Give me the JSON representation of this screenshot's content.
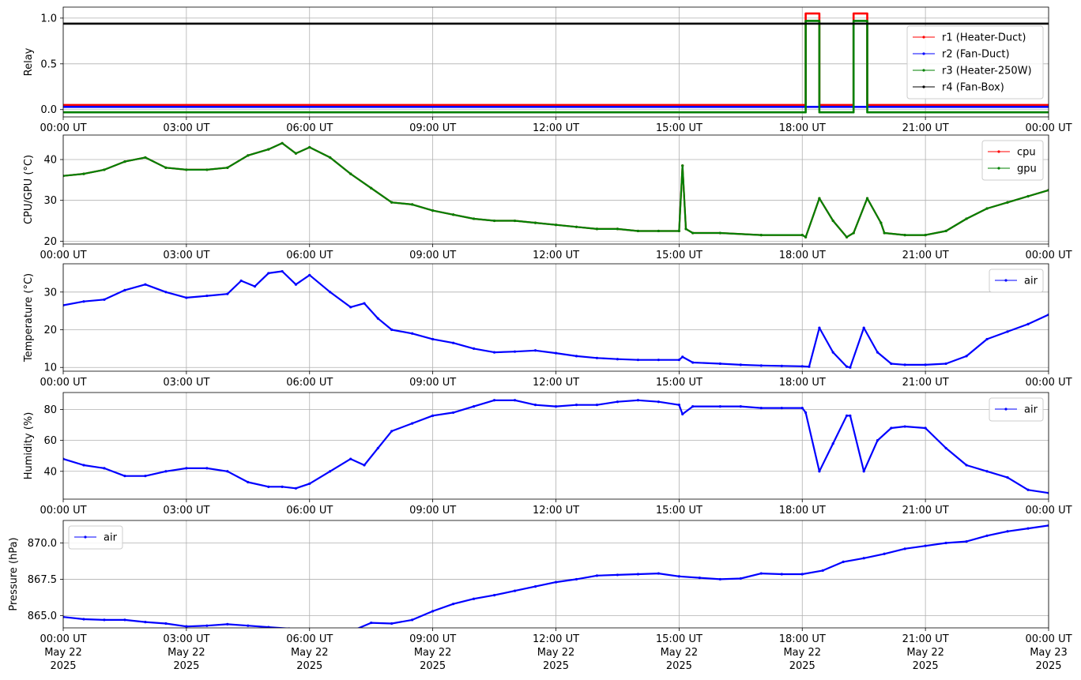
{
  "chart_data": [
    {
      "type": "line",
      "ylabel": "Relay",
      "ylim": [
        -0.08,
        1.12
      ],
      "yticks": [
        0.0,
        0.5,
        1.0
      ],
      "ytick_labels": [
        "0.0",
        "0.5",
        "1.0"
      ],
      "grid": true,
      "legend_position": "right",
      "series": [
        {
          "name": "r1 (Heater-Duct)",
          "color": "#ff0000",
          "offset": 0.05,
          "x": [
            "00:00",
            "18:05",
            "18:05",
            "18:25",
            "18:25",
            "19:15",
            "19:15",
            "19:35",
            "19:35",
            "24:00"
          ],
          "y": [
            0,
            0,
            1,
            1,
            0,
            0,
            1,
            1,
            0,
            0
          ]
        },
        {
          "name": "r2 (Fan-Duct)",
          "color": "#0000ff",
          "offset": 0.03,
          "x": [
            "00:00",
            "24:00"
          ],
          "y": [
            0,
            0
          ]
        },
        {
          "name": "r3 (Heater-250W)",
          "color": "#008000",
          "offset": -0.03,
          "x": [
            "00:00",
            "18:05",
            "18:05",
            "18:25",
            "18:25",
            "19:15",
            "19:15",
            "19:35",
            "19:35",
            "24:00"
          ],
          "y": [
            0,
            0,
            1,
            1,
            0,
            0,
            1,
            1,
            0,
            0
          ]
        },
        {
          "name": "r4 (Fan-Box)",
          "color": "#000000",
          "offset": -0.06,
          "x": [
            "00:00",
            "24:00"
          ],
          "y": [
            1,
            1
          ]
        }
      ]
    },
    {
      "type": "line",
      "ylabel": "CPU/GPU (°C)",
      "ylim": [
        19.3,
        46
      ],
      "yticks": [
        20,
        30,
        40
      ],
      "ytick_labels": [
        "20",
        "30",
        "40"
      ],
      "grid": true,
      "legend_position": "top-right",
      "x": [
        "00:00",
        "00:30",
        "01:00",
        "01:30",
        "02:00",
        "02:30",
        "03:00",
        "03:30",
        "04:00",
        "04:30",
        "05:00",
        "05:20",
        "05:40",
        "06:00",
        "06:30",
        "07:00",
        "07:30",
        "08:00",
        "08:30",
        "09:00",
        "09:30",
        "10:00",
        "10:30",
        "11:00",
        "11:30",
        "12:00",
        "12:30",
        "13:00",
        "13:30",
        "14:00",
        "14:30",
        "15:00",
        "15:05",
        "15:10",
        "15:20",
        "16:00",
        "17:00",
        "18:00",
        "18:05",
        "18:25",
        "18:45",
        "19:05",
        "19:15",
        "19:35",
        "19:55",
        "20:00",
        "20:30",
        "21:00",
        "21:30",
        "22:00",
        "22:30",
        "23:00",
        "23:30",
        "24:00"
      ],
      "series": [
        {
          "name": "cpu",
          "color": "#ff0000",
          "values": [
            36,
            36.5,
            37.5,
            39.5,
            40.5,
            38,
            37.5,
            37.5,
            38,
            41,
            42.5,
            44,
            41.5,
            43,
            40.5,
            36.5,
            33,
            29.5,
            29,
            27.5,
            26.5,
            25.5,
            25,
            25,
            24.5,
            24,
            23.5,
            23,
            23,
            22.5,
            22.5,
            22.5,
            38.5,
            23,
            22,
            22,
            21.5,
            21.5,
            21,
            30.5,
            25,
            21,
            22,
            30.5,
            24.5,
            22,
            21.5,
            21.5,
            22.5,
            25.5,
            28,
            29.5,
            31,
            32.5
          ]
        },
        {
          "name": "gpu",
          "color": "#008000",
          "values": [
            36,
            36.5,
            37.5,
            39.5,
            40.5,
            38,
            37.5,
            37.5,
            38,
            41,
            42.5,
            44,
            41.5,
            43,
            40.5,
            36.5,
            33,
            29.5,
            29,
            27.5,
            26.5,
            25.5,
            25,
            25,
            24.5,
            24,
            23.5,
            23,
            23,
            22.5,
            22.5,
            22.5,
            38.5,
            23,
            22,
            22,
            21.5,
            21.5,
            21,
            30.5,
            25,
            21,
            22,
            30.5,
            24.5,
            22,
            21.5,
            21.5,
            22.5,
            25.5,
            28,
            29.5,
            31,
            32.5
          ]
        }
      ]
    },
    {
      "type": "line",
      "ylabel": "Temperature (°C)",
      "ylim": [
        9,
        37.5
      ],
      "yticks": [
        10,
        20,
        30
      ],
      "ytick_labels": [
        "10",
        "20",
        "30"
      ],
      "grid": true,
      "legend_position": "top-right",
      "x": [
        "00:00",
        "00:30",
        "01:00",
        "01:30",
        "02:00",
        "02:30",
        "03:00",
        "03:30",
        "04:00",
        "04:20",
        "04:40",
        "05:00",
        "05:20",
        "05:40",
        "06:00",
        "06:30",
        "07:00",
        "07:20",
        "07:40",
        "08:00",
        "08:30",
        "09:00",
        "09:30",
        "10:00",
        "10:30",
        "11:00",
        "11:30",
        "12:00",
        "12:30",
        "13:00",
        "13:30",
        "14:00",
        "14:30",
        "15:00",
        "15:05",
        "15:20",
        "16:00",
        "16:30",
        "17:00",
        "17:30",
        "18:00",
        "18:10",
        "18:25",
        "18:45",
        "19:05",
        "19:10",
        "19:30",
        "19:50",
        "20:10",
        "20:30",
        "21:00",
        "21:30",
        "22:00",
        "22:30",
        "23:00",
        "23:30",
        "24:00"
      ],
      "series": [
        {
          "name": "air",
          "color": "#0000ff",
          "values": [
            26.5,
            27.5,
            28,
            30.5,
            32,
            30,
            28.5,
            29,
            29.5,
            33,
            31.5,
            35,
            35.5,
            32,
            34.5,
            30,
            26,
            27,
            23,
            20,
            19,
            17.5,
            16.5,
            15,
            14,
            14.2,
            14.5,
            13.8,
            13,
            12.5,
            12.2,
            12,
            12,
            12,
            12.8,
            11.3,
            11,
            10.7,
            10.5,
            10.4,
            10.3,
            10.2,
            20.5,
            14,
            10.2,
            10,
            20.5,
            14,
            11,
            10.7,
            10.7,
            11,
            13,
            17.5,
            19.5,
            21.5,
            24
          ]
        }
      ]
    },
    {
      "type": "line",
      "ylabel": "Humidity (%)",
      "ylim": [
        22,
        91
      ],
      "yticks": [
        40,
        60,
        80
      ],
      "ytick_labels": [
        "40",
        "60",
        "80"
      ],
      "grid": true,
      "legend_position": "top-right",
      "x": [
        "00:00",
        "00:30",
        "01:00",
        "01:30",
        "02:00",
        "02:30",
        "03:00",
        "03:30",
        "04:00",
        "04:30",
        "05:00",
        "05:20",
        "05:40",
        "06:00",
        "06:30",
        "07:00",
        "07:20",
        "07:40",
        "08:00",
        "08:30",
        "09:00",
        "09:30",
        "10:00",
        "10:30",
        "11:00",
        "11:30",
        "12:00",
        "12:30",
        "13:00",
        "13:30",
        "14:00",
        "14:30",
        "15:00",
        "15:05",
        "15:20",
        "16:00",
        "16:30",
        "17:00",
        "17:30",
        "18:00",
        "18:05",
        "18:25",
        "18:45",
        "19:05",
        "19:10",
        "19:30",
        "19:50",
        "20:10",
        "20:30",
        "21:00",
        "21:30",
        "22:00",
        "22:30",
        "23:00",
        "23:30",
        "24:00"
      ],
      "series": [
        {
          "name": "air",
          "color": "#0000ff",
          "values": [
            48,
            44,
            42,
            37,
            37,
            40,
            42,
            42,
            40,
            33,
            30,
            30,
            29,
            32,
            40,
            48,
            44,
            55,
            66,
            71,
            76,
            78,
            82,
            86,
            86,
            83,
            82,
            83,
            83,
            85,
            86,
            85,
            83,
            77,
            82,
            82,
            82,
            81,
            81,
            81,
            78,
            40,
            58,
            76,
            76,
            40,
            60,
            68,
            69,
            68,
            55,
            44,
            40,
            36,
            28,
            26
          ]
        }
      ]
    },
    {
      "type": "line",
      "ylabel": "Pressure (hPa)",
      "ylim": [
        864.15,
        871.55
      ],
      "yticks": [
        865.0,
        867.5,
        870.0
      ],
      "ytick_labels": [
        "865.0",
        "867.5",
        "870.0"
      ],
      "grid": true,
      "legend_position": "top-left",
      "x": [
        "00:00",
        "00:30",
        "01:00",
        "01:30",
        "02:00",
        "02:30",
        "03:00",
        "03:30",
        "04:00",
        "04:30",
        "05:00",
        "05:30",
        "06:00",
        "06:30",
        "07:00",
        "07:30",
        "08:00",
        "08:30",
        "09:00",
        "09:30",
        "10:00",
        "10:30",
        "11:00",
        "11:30",
        "12:00",
        "12:30",
        "13:00",
        "13:30",
        "14:00",
        "14:30",
        "15:00",
        "15:30",
        "16:00",
        "16:30",
        "17:00",
        "17:30",
        "18:00",
        "18:30",
        "19:00",
        "19:30",
        "20:00",
        "20:30",
        "21:00",
        "21:30",
        "22:00",
        "22:30",
        "23:00",
        "23:30",
        "24:00"
      ],
      "series": [
        {
          "name": "air",
          "color": "#0000ff",
          "values": [
            864.9,
            864.75,
            864.7,
            864.7,
            864.55,
            864.45,
            864.25,
            864.3,
            864.4,
            864.3,
            864.2,
            864.1,
            863.95,
            864.0,
            863.9,
            864.5,
            864.45,
            864.7,
            865.3,
            865.8,
            866.15,
            866.4,
            866.7,
            867.0,
            867.3,
            867.5,
            867.75,
            867.8,
            867.85,
            867.9,
            867.7,
            867.6,
            867.5,
            867.55,
            867.9,
            867.85,
            867.85,
            868.1,
            868.7,
            868.95,
            869.25,
            869.6,
            869.8,
            870.0,
            870.1,
            870.5,
            870.8,
            871.0,
            871.2
          ]
        }
      ]
    }
  ],
  "x_axis": {
    "ticks": [
      "00:00",
      "03:00",
      "06:00",
      "09:00",
      "12:00",
      "15:00",
      "18:00",
      "21:00",
      "24:00"
    ],
    "tick_labels": [
      "00:00 UT",
      "03:00 UT",
      "06:00 UT",
      "09:00 UT",
      "12:00 UT",
      "15:00 UT",
      "18:00 UT",
      "21:00 UT",
      "00:00 UT"
    ],
    "date_labels": [
      "May 22",
      "May 22",
      "May 22",
      "May 22",
      "May 22",
      "May 22",
      "May 22",
      "May 22",
      "May 23"
    ],
    "year_labels": [
      "2025",
      "2025",
      "2025",
      "2025",
      "2025",
      "2025",
      "2025",
      "2025",
      "2025"
    ]
  }
}
